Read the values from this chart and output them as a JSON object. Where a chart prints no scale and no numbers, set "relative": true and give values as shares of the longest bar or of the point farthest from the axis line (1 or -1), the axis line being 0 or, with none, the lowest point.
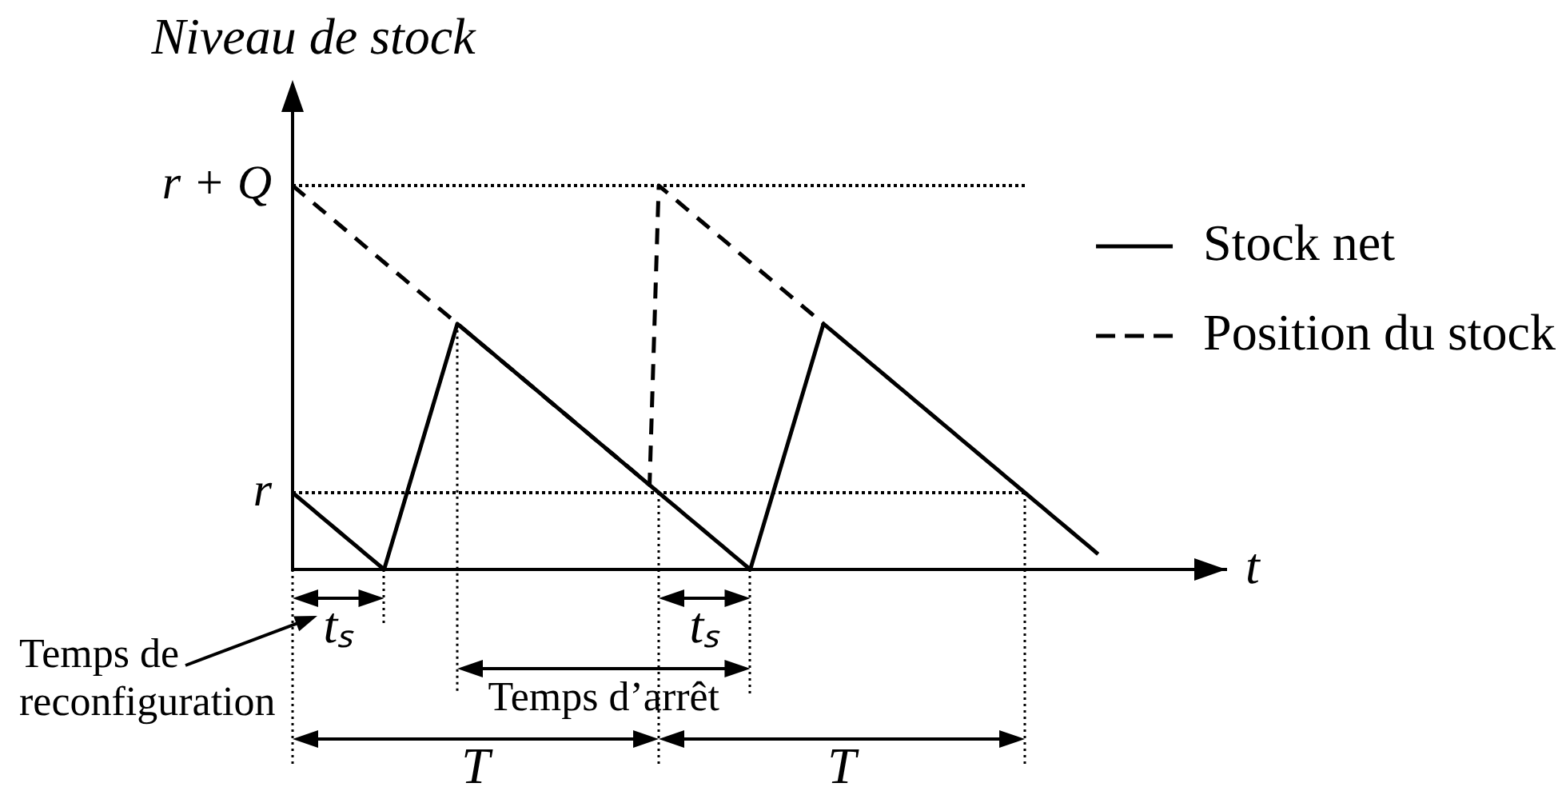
{
  "chart_data": {
    "type": "line",
    "relative": true,
    "ylabel": "Niveau de stock",
    "xlabel": "t",
    "legend": "right",
    "grid": "x",
    "categories": [
      null,
      null,
      null,
      null,
      null,
      null,
      null,
      null,
      null,
      null,
      null,
      null,
      null,
      null,
      null,
      null,
      null,
      null,
      null,
      null,
      null,
      null,
      null,
      null,
      null,
      null,
      null,
      null,
      null,
      null,
      null,
      null,
      null,
      null,
      null,
      null,
      null,
      null,
      null,
      null,
      null,
      null,
      null,
      null,
      null,
      null,
      null,
      null,
      null,
      null,
      null,
      null,
      null,
      null,
      null,
      null,
      null,
      null,
      null,
      null,
      null,
      null,
      null,
      null,
      null,
      null,
      null,
      null,
      null,
      null,
      null,
      null,
      null,
      null,
      null,
      null,
      null,
      null,
      null,
      null,
      null,
      null,
      null,
      null,
      null,
      null,
      null,
      null,
      null,
      null,
      null,
      null,
      null,
      null,
      null,
      null,
      null,
      null,
      null,
      null,
      null,
      null,
      null
    ],
    "series": [
      {
        "name": "Stock net",
        "color": "#000000",
        "line_style": "solid",
        "values": [
          0.2,
          0.18,
          0.16,
          0.14,
          0.12,
          0.1,
          0.08,
          0.06,
          0.04,
          0.02,
          0,
          0.08,
          0.16,
          0.24,
          0.32,
          0.4,
          0.48,
          0.56,
          0.64,
          0.62,
          0.6,
          0.58,
          0.56,
          0.54,
          0.52,
          0.5,
          0.48,
          0.46,
          0.44,
          0.42,
          0.4,
          0.38,
          0.36,
          0.34,
          0.32,
          0.3,
          0.28,
          0.26,
          0.24,
          0.22,
          0.2,
          0.18,
          0.16,
          0.14,
          0.12,
          0.1,
          0.08,
          0.06,
          0.04,
          0.02,
          0,
          0.08,
          0.16,
          0.24,
          0.32,
          0.4,
          0.48,
          0.56,
          0.64,
          0.62,
          0.6,
          0.58,
          0.56,
          0.54,
          0.52,
          0.5,
          0.48,
          0.46,
          0.44,
          0.42,
          0.4,
          0.38,
          0.36,
          0.34,
          0.32,
          0.3,
          0.28,
          0.26,
          0.24,
          0.22,
          0.2,
          0.18,
          0.16,
          0.14,
          0.12,
          0.1,
          0.08,
          0.06,
          0.04,
          null,
          null,
          null,
          null,
          null,
          null,
          null,
          null,
          null,
          null,
          null,
          null,
          null,
          null
        ]
      },
      {
        "name": "Position du stock",
        "color": "#000000",
        "line_style": "dashed",
        "values": [
          1,
          0.98,
          0.96,
          0.94,
          0.92,
          0.9,
          0.88,
          0.86,
          0.84,
          0.82,
          0.8,
          0.78,
          0.76,
          0.74,
          0.72,
          0.7,
          0.68,
          0.66,
          0.64,
          0.62,
          0.6,
          0.58,
          0.56,
          0.54,
          0.52,
          0.5,
          0.48,
          0.46,
          0.44,
          0.42,
          0.4,
          0.38,
          0.36,
          0.34,
          0.32,
          0.3,
          0.28,
          0.26,
          0.24,
          0.22,
          1,
          0.98,
          0.96,
          0.94,
          0.92,
          0.9,
          0.88,
          0.86,
          0.84,
          0.82,
          0.8,
          0.78,
          0.76,
          0.74,
          0.72,
          0.7,
          0.68,
          0.66,
          0.64,
          null,
          null,
          null,
          null,
          null,
          null,
          null,
          null,
          null,
          null,
          null,
          null,
          null,
          null,
          null,
          null,
          null,
          null,
          null,
          null,
          null,
          null,
          null,
          null,
          null,
          null,
          null,
          null,
          null,
          null,
          null,
          null,
          null,
          null,
          null,
          null,
          null,
          null,
          null,
          null,
          null,
          null,
          null,
          null
        ]
      }
    ],
    "ref_lines": [
      {
        "axis": "y",
        "value": 1,
        "label": "r + Q",
        "line_style": "dotted"
      },
      {
        "axis": "y",
        "value": 0.2,
        "label": "r",
        "line_style": "dotted"
      }
    ],
    "annotations": [
      "tₛ",
      "tₛ",
      "Temps d’arrêt",
      "T",
      "T",
      "Temps de reconfiguration"
    ]
  }
}
